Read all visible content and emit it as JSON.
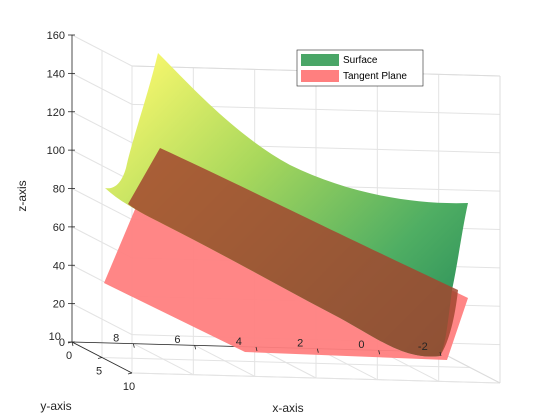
{
  "chart_data": {
    "type": "surface3d",
    "xlabel": "x-axis",
    "ylabel": "y-axis",
    "zlabel": "z-axis",
    "xlim": [
      -2,
      10
    ],
    "ylim": [
      0,
      10
    ],
    "zlim": [
      0,
      160
    ],
    "x_ticks": [
      "-2",
      "0",
      "2",
      "4",
      "6",
      "8",
      "10"
    ],
    "y_ticks": [
      "0",
      "5",
      "10"
    ],
    "z_ticks": [
      "0",
      "20",
      "40",
      "60",
      "80",
      "100",
      "120",
      "140",
      "160"
    ],
    "grid": true,
    "legend_position": "top-right",
    "series": [
      {
        "name": "Surface",
        "color": "#4aa667",
        "colormap": [
          "#2e8b57",
          "#f2f56c"
        ]
      },
      {
        "name": "Tangent Plane",
        "color": "#ff7f7f",
        "opacity": 0.8
      }
    ]
  }
}
